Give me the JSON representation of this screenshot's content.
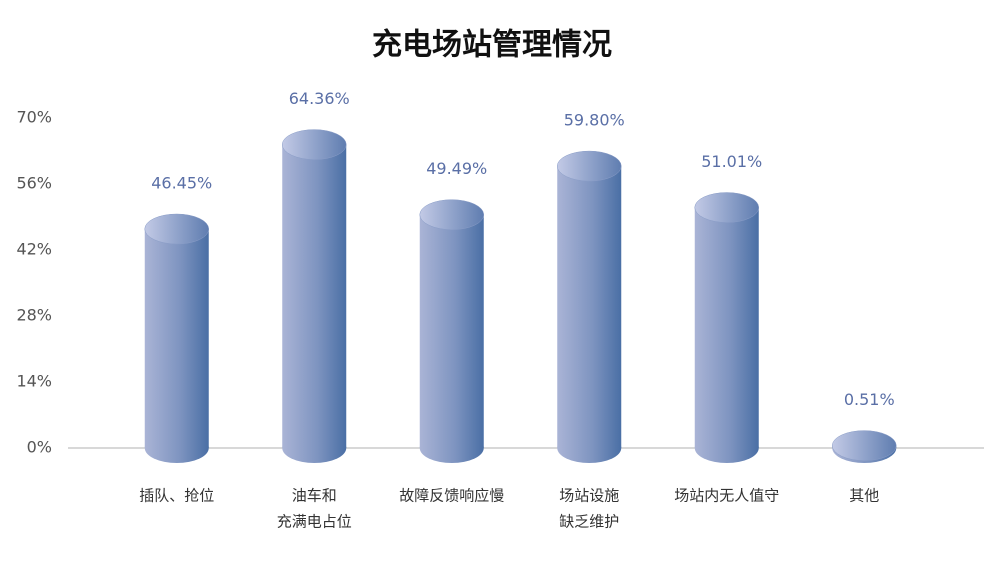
{
  "chart_data": {
    "type": "cylinder",
    "title": "充电场站管理情况",
    "categories": [
      [
        "插队、抢位"
      ],
      [
        "油车和",
        "充满电占位"
      ],
      [
        "故障反馈响应慢"
      ],
      [
        "场站设施",
        "缺乏维护"
      ],
      [
        "场站内无人值守"
      ],
      [
        "其他"
      ]
    ],
    "values": [
      46.45,
      64.36,
      49.49,
      59.8,
      51.01,
      0.51
    ],
    "value_labels": [
      "46.45%",
      "64.36%",
      "49.49%",
      "59.80%",
      "51.01%",
      "0.51%"
    ],
    "ylim": [
      0,
      70
    ],
    "yticks": [
      {
        "value": 0,
        "label": "0%"
      },
      {
        "value": 14,
        "label": "14%"
      },
      {
        "value": 28,
        "label": "28%"
      },
      {
        "value": 42,
        "label": "42%"
      },
      {
        "value": 56,
        "label": "56%"
      },
      {
        "value": 70,
        "label": "70%"
      }
    ],
    "color": "#4a6fa5"
  }
}
